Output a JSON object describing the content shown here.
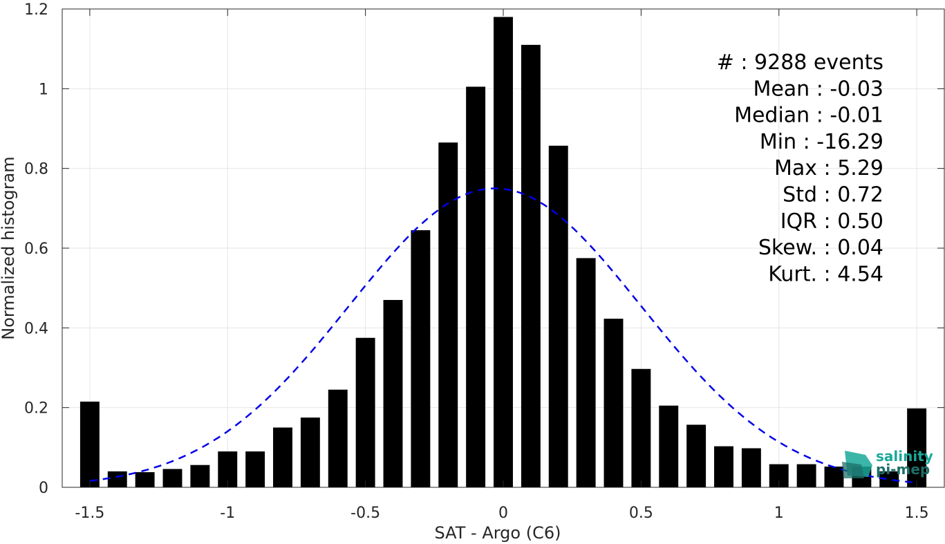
{
  "chart_data": {
    "type": "bar",
    "xlabel": "SAT - Argo (C6)",
    "ylabel": "Normalized histogram",
    "xlim": [
      -1.6,
      1.6
    ],
    "ylim": [
      0,
      1.2
    ],
    "xticks": [
      "-1.5",
      "-1",
      "-0.5",
      "0",
      "0.5",
      "1",
      "1.5"
    ],
    "yticks": [
      "0",
      "0.2",
      "0.4",
      "0.6",
      "0.8",
      "1",
      "1.2"
    ],
    "grid": true,
    "bin_centers": [
      -1.5,
      -1.4,
      -1.3,
      -1.2,
      -1.1,
      -1.0,
      -0.9,
      -0.8,
      -0.7,
      -0.6,
      -0.5,
      -0.4,
      -0.3,
      -0.2,
      -0.1,
      0.0,
      0.1,
      0.2,
      0.3,
      0.4,
      0.5,
      0.6,
      0.7,
      0.8,
      0.9,
      1.0,
      1.1,
      1.2,
      1.3,
      1.4,
      1.5
    ],
    "values": [
      0.215,
      0.04,
      0.038,
      0.046,
      0.056,
      0.09,
      0.09,
      0.15,
      0.175,
      0.245,
      0.375,
      0.47,
      0.645,
      0.865,
      1.005,
      1.18,
      1.11,
      0.857,
      0.575,
      0.423,
      0.297,
      0.205,
      0.157,
      0.103,
      0.098,
      0.058,
      0.058,
      0.052,
      0.052,
      0.04,
      0.198
    ],
    "bar_color": "#000000",
    "fit_curve": {
      "style": "dashed",
      "color": "#0000e6",
      "mean": -0.03,
      "std": 0.53,
      "peak": 0.75,
      "x_range": [
        -1.5,
        1.5
      ]
    },
    "stats": [
      "#  : 9288 events",
      "Mean : -0.03",
      "Median : -0.01",
      "Min : -16.29",
      "Max : 5.29",
      "Std : 0.72",
      "IQR : 0.50",
      "Skew. : 0.04",
      "Kurt. : 4.54"
    ]
  },
  "logo": {
    "line1": "salinity",
    "line2": "pi-mep",
    "color1": "#1aa89a",
    "color2": "#1e6f68"
  }
}
